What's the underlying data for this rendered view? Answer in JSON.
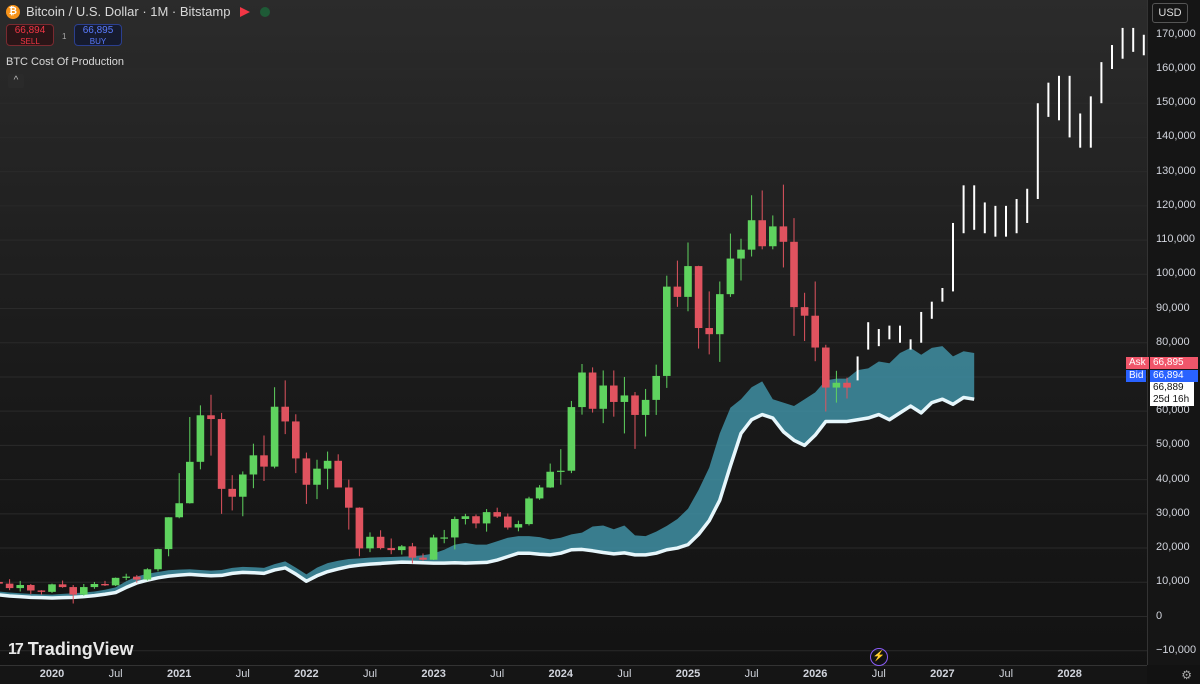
{
  "header": {
    "symbol_title": "Bitcoin / U.S. Dollar · 1M · Bitstamp",
    "coin_icon": "bitcoin-icon",
    "sell_price": "66,894",
    "sell_label": "SELL",
    "buy_price": "66,895",
    "buy_label": "BUY",
    "spread": "1",
    "indicator_name": "BTC Cost Of Production",
    "currency": "USD",
    "collapse_icon": "chevron-up-icon"
  },
  "price_labels": {
    "ask_label": "Ask",
    "ask_value": "66,895",
    "bid_label": "Bid",
    "bid_value": "66,894",
    "last_value": "66,889",
    "countdown": "25d 16h"
  },
  "footer": {
    "brand": "TradingView",
    "bolt_icon": "lightning-icon",
    "settings_icon": "gear-icon"
  },
  "colors": {
    "up": "#5fd35f",
    "down": "#e0535f",
    "band": "#3f8fa3",
    "cost_line": "#e6f6fb",
    "projection": "#ffffff"
  },
  "chart_data": {
    "type": "candlestick",
    "title": "Bitcoin / U.S. Dollar · 1M · Bitstamp",
    "y_axis": {
      "ticks": [
        -10000,
        0,
        10000,
        20000,
        30000,
        40000,
        50000,
        60000,
        70000,
        80000,
        90000,
        100000,
        110000,
        120000,
        130000,
        140000,
        150000,
        160000,
        170000
      ],
      "tick_labels": [
        "−10,000",
        "0",
        "10,000",
        "20,000",
        "30,000",
        "40,000",
        "50,000",
        "60,000",
        "70,000",
        "80,000",
        "90,000",
        "100,000",
        "110,000",
        "120,000",
        "130,000",
        "140,000",
        "150,000",
        "160,000",
        "170,000"
      ],
      "ylim": [
        -10500,
        172000
      ],
      "scale": "linear"
    },
    "x_axis": {
      "ticks": [
        "2020",
        "Jul",
        "2021",
        "Jul",
        "2022",
        "Jul",
        "2023",
        "Jul",
        "2024",
        "Jul",
        "2025",
        "Jul",
        "2026",
        "Jul",
        "2027",
        "Jul",
        "2028"
      ],
      "tick_dates": [
        "2020-01",
        "2020-07",
        "2021-01",
        "2021-07",
        "2022-01",
        "2022-07",
        "2023-01",
        "2023-07",
        "2024-01",
        "2024-07",
        "2025-01",
        "2025-07",
        "2026-01",
        "2026-07",
        "2027-01",
        "2027-07",
        "2028-01"
      ],
      "start": "2019-07",
      "end": "2028-04"
    },
    "candles": {
      "start": "2019-07",
      "ohlc": [
        [
          10800,
          13100,
          9100,
          10100
        ],
        [
          10100,
          12300,
          9400,
          9600
        ],
        [
          9600,
          10900,
          7700,
          8300
        ],
        [
          8300,
          10400,
          7300,
          9200
        ],
        [
          9200,
          9500,
          6500,
          7600
        ],
        [
          7600,
          7700,
          6400,
          7200
        ],
        [
          7200,
          9600,
          6900,
          9400
        ],
        [
          9400,
          10500,
          8400,
          8600
        ],
        [
          8600,
          9200,
          3800,
          6400
        ],
        [
          6400,
          9500,
          6100,
          8600
        ],
        [
          8600,
          10100,
          8100,
          9500
        ],
        [
          9500,
          10400,
          8900,
          9100
        ],
        [
          9100,
          11400,
          8900,
          11300
        ],
        [
          11300,
          12500,
          10600,
          11650
        ],
        [
          11650,
          12100,
          9900,
          10800
        ],
        [
          10800,
          14100,
          10500,
          13800
        ],
        [
          13800,
          19800,
          13200,
          19700
        ],
        [
          19700,
          29000,
          17600,
          29000
        ],
        [
          29000,
          41900,
          28700,
          33100
        ],
        [
          33100,
          58300,
          33000,
          45200
        ],
        [
          45200,
          61700,
          43000,
          58800
        ],
        [
          58800,
          64800,
          47000,
          57700
        ],
        [
          57700,
          59500,
          30000,
          37300
        ],
        [
          37300,
          41300,
          31000,
          35000
        ],
        [
          35000,
          42400,
          29300,
          41500
        ],
        [
          41500,
          50500,
          37500,
          47100
        ],
        [
          47100,
          52900,
          39600,
          43800
        ],
        [
          43800,
          67000,
          43300,
          61300
        ],
        [
          61300,
          69000,
          53300,
          57000
        ],
        [
          57000,
          59100,
          41900,
          46200
        ],
        [
          46200,
          47900,
          32900,
          38500
        ],
        [
          38500,
          45800,
          34300,
          43200
        ],
        [
          43200,
          48200,
          37200,
          45500
        ],
        [
          45500,
          47400,
          37700,
          37700
        ],
        [
          37700,
          40000,
          25400,
          31800
        ],
        [
          31800,
          31900,
          17600,
          19900
        ],
        [
          19900,
          24600,
          18800,
          23300
        ],
        [
          23300,
          25200,
          19600,
          20000
        ],
        [
          20000,
          22800,
          18200,
          19400
        ],
        [
          19400,
          20900,
          18100,
          20500
        ],
        [
          20500,
          21500,
          15500,
          17200
        ],
        [
          17200,
          18400,
          16300,
          16600
        ],
        [
          16600,
          23900,
          16500,
          23100
        ],
        [
          23100,
          25300,
          21400,
          23100
        ],
        [
          23100,
          29200,
          19600,
          28500
        ],
        [
          28500,
          30000,
          26900,
          29300
        ],
        [
          29300,
          29800,
          25800,
          27200
        ],
        [
          27200,
          31400,
          24800,
          30500
        ],
        [
          30500,
          31800,
          28800,
          29200
        ],
        [
          29200,
          30100,
          25400,
          26000
        ],
        [
          26000,
          28000,
          24900,
          27000
        ],
        [
          27000,
          35000,
          26600,
          34500
        ],
        [
          34500,
          38400,
          34100,
          37700
        ],
        [
          37700,
          44700,
          37600,
          42300
        ],
        [
          42300,
          48900,
          38500,
          42600
        ],
        [
          42600,
          63000,
          41900,
          61200
        ],
        [
          61200,
          73800,
          59000,
          71300
        ],
        [
          71300,
          72800,
          59600,
          60700
        ],
        [
          60700,
          71900,
          56500,
          67500
        ],
        [
          67500,
          71900,
          58400,
          62700
        ],
        [
          62700,
          70000,
          53500,
          64600
        ],
        [
          64600,
          65600,
          49000,
          58900
        ],
        [
          58900,
          66500,
          52600,
          63300
        ],
        [
          63300,
          73600,
          58900,
          70300
        ],
        [
          70300,
          99600,
          66800,
          96400
        ],
        [
          96400,
          104000,
          90500,
          93400
        ],
        [
          93400,
          109300,
          89200,
          102400
        ],
        [
          102400,
          102500,
          78300,
          84300
        ],
        [
          84300,
          95000,
          76600,
          82500
        ],
        [
          82500,
          97900,
          74400,
          94200
        ],
        [
          94200,
          111900,
          93400,
          104600
        ],
        [
          104600,
          110400,
          98200,
          107200
        ],
        [
          107200,
          123100,
          105200,
          115800
        ],
        [
          115800,
          124500,
          107300,
          108200
        ],
        [
          108200,
          117200,
          107300,
          114000
        ],
        [
          114000,
          126200,
          102000,
          109500
        ],
        [
          109500,
          116400,
          82000,
          90400
        ],
        [
          90400,
          94600,
          80500,
          87900
        ],
        [
          87900,
          97900,
          74600,
          78600
        ],
        [
          78600,
          79400,
          59900,
          66900
        ],
        [
          66900,
          71800,
          62500,
          68300
        ],
        [
          68300,
          69800,
          63700,
          66889
        ]
      ]
    },
    "projection": {
      "start": "2026-05",
      "ohlc": [
        [
          70000,
          76000,
          69000,
          75000
        ],
        [
          79000,
          86000,
          78000,
          82000
        ],
        [
          81000,
          84000,
          79000,
          83000
        ],
        [
          83000,
          85000,
          81000,
          84000
        ],
        [
          83000,
          85000,
          80000,
          82000
        ],
        [
          79000,
          81000,
          78000,
          80000
        ],
        [
          81000,
          89000,
          80000,
          88000
        ],
        [
          88000,
          92000,
          87000,
          91000
        ],
        [
          93000,
          96000,
          92000,
          95000
        ],
        [
          96000,
          115000,
          95000,
          114000
        ],
        [
          115000,
          126000,
          112000,
          120000
        ],
        [
          120000,
          126000,
          113000,
          116000
        ],
        [
          116000,
          121000,
          112000,
          119000
        ],
        [
          117000,
          120000,
          111000,
          114000
        ],
        [
          114000,
          120000,
          111000,
          117000
        ],
        [
          116000,
          122000,
          112000,
          118000
        ],
        [
          118000,
          125000,
          115000,
          120000
        ],
        [
          124000,
          150000,
          122000,
          148000
        ],
        [
          148000,
          156000,
          146000,
          149000
        ],
        [
          150000,
          158000,
          145000,
          153000
        ],
        [
          154000,
          158000,
          140000,
          142000
        ],
        [
          142000,
          147000,
          137000,
          138000
        ],
        [
          138000,
          152000,
          137000,
          150000
        ],
        [
          155000,
          162000,
          150000,
          160000
        ],
        [
          163000,
          167000,
          160000,
          165000
        ],
        [
          165000,
          172000,
          163000,
          170000
        ],
        [
          168000,
          172000,
          165000,
          167000
        ],
        [
          166000,
          170000,
          164000,
          168000
        ]
      ]
    },
    "cost_of_production": {
      "name": "BTC Cost Of Production",
      "start": "2019-07",
      "lower": [
        6500,
        6300,
        6000,
        5800,
        5600,
        5500,
        5400,
        5500,
        5600,
        5800,
        6100,
        6500,
        7000,
        8500,
        9800,
        10600,
        11300,
        11800,
        12100,
        12300,
        12100,
        11900,
        12000,
        12600,
        12900,
        12800,
        12600,
        13600,
        14200,
        12400,
        10300,
        11900,
        13100,
        13900,
        14600,
        15000,
        15300,
        15500,
        15700,
        15900,
        15800,
        15700,
        15600,
        15600,
        15700,
        15600,
        15700,
        15800,
        16500,
        17500,
        18500,
        18500,
        18200,
        18000,
        18500,
        19500,
        19600,
        19200,
        18700,
        18300,
        18600,
        18000,
        18000,
        18500,
        19500,
        20000,
        21000,
        24000,
        28000,
        34000,
        44000,
        53500,
        57500,
        59000,
        58000,
        54000,
        51500,
        50000,
        53000,
        57000,
        57000,
        57000,
        57500,
        58000,
        59000,
        57500,
        59500,
        61500,
        59500,
        62500,
        63500,
        62000,
        64000,
        63500
      ],
      "upper": [
        7500,
        7300,
        7000,
        6800,
        6600,
        6500,
        6400,
        6600,
        6800,
        7000,
        7300,
        7800,
        8500,
        10300,
        11700,
        12500,
        13000,
        13500,
        13700,
        13800,
        13600,
        13400,
        13600,
        14200,
        14500,
        14400,
        14200,
        15300,
        16100,
        14300,
        12300,
        14300,
        15600,
        16300,
        16800,
        17000,
        17200,
        17300,
        17400,
        17500,
        17600,
        17900,
        18400,
        19500,
        21000,
        21500,
        21000,
        21000,
        22000,
        23000,
        23500,
        23500,
        23200,
        22500,
        23000,
        24000,
        24500,
        26300,
        26600,
        25500,
        26600,
        23700,
        23500,
        24800,
        26500,
        28500,
        31500,
        37000,
        43500,
        53500,
        61000,
        63500,
        67000,
        68700,
        63500,
        62500,
        61500,
        63500,
        65500,
        69000,
        69500,
        69500,
        72000,
        72500,
        74500,
        74000,
        77000,
        78500,
        76500,
        78500,
        79000,
        76000,
        77500,
        77000
      ]
    }
  }
}
